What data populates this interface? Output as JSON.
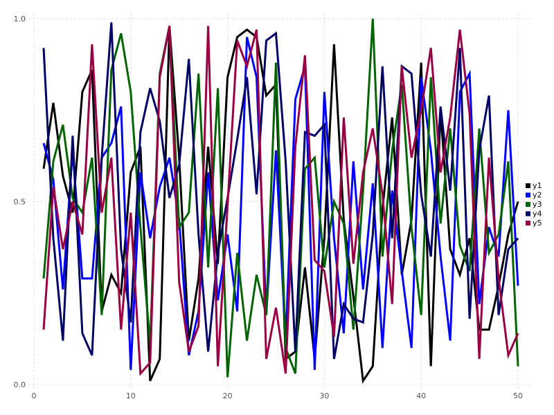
{
  "chart_data": {
    "type": "line",
    "title": "",
    "xlabel": "",
    "ylabel": "",
    "xlim": [
      0,
      50
    ],
    "ylim": [
      0,
      1
    ],
    "x_ticks": [
      "0",
      "10",
      "20",
      "30",
      "40",
      "50"
    ],
    "y_ticks": [
      "0.0",
      "0.5",
      "1.0"
    ],
    "grid": true,
    "legend_position": "right",
    "x": [
      1,
      2,
      3,
      4,
      5,
      6,
      7,
      8,
      9,
      10,
      11,
      12,
      13,
      14,
      15,
      16,
      17,
      18,
      19,
      20,
      21,
      22,
      23,
      24,
      25,
      26,
      27,
      28,
      29,
      30,
      31,
      32,
      33,
      34,
      35,
      36,
      37,
      38,
      39,
      40,
      41,
      42,
      43,
      44,
      45,
      46,
      47,
      48,
      49,
      50
    ],
    "series": [
      {
        "name": "y1",
        "color": "#000000",
        "values": [
          0.59,
          0.77,
          0.57,
          0.47,
          0.8,
          0.86,
          0.2,
          0.3,
          0.25,
          0.58,
          0.65,
          0.01,
          0.07,
          0.98,
          0.62,
          0.12,
          0.29,
          0.65,
          0.33,
          0.84,
          0.95,
          0.97,
          0.95,
          0.79,
          0.82,
          0.07,
          0.09,
          0.32,
          0.07,
          0.4,
          0.93,
          0.45,
          0.24,
          0.01,
          0.05,
          0.48,
          0.73,
          0.3,
          0.45,
          0.88,
          0.05,
          0.75,
          0.37,
          0.3,
          0.4,
          0.15,
          0.15,
          0.27,
          0.41,
          0.5
        ]
      },
      {
        "name": "y2",
        "color": "#0000ff",
        "values": [
          0.66,
          0.56,
          0.26,
          0.64,
          0.29,
          0.29,
          0.62,
          0.66,
          0.76,
          0.04,
          0.58,
          0.4,
          0.54,
          0.62,
          0.45,
          0.08,
          0.2,
          0.58,
          0.23,
          0.41,
          0.2,
          0.95,
          0.84,
          0.19,
          0.64,
          0.12,
          0.78,
          0.87,
          0.04,
          0.8,
          0.4,
          0.14,
          0.61,
          0.26,
          0.55,
          0.1,
          0.53,
          0.31,
          0.1,
          0.84,
          0.64,
          0.35,
          0.12,
          0.8,
          0.85,
          0.22,
          0.43,
          0.35,
          0.75,
          0.27
        ]
      },
      {
        "name": "y3",
        "color": "#006400",
        "values": [
          0.29,
          0.61,
          0.71,
          0.51,
          0.47,
          0.62,
          0.19,
          0.86,
          0.96,
          0.8,
          0.43,
          0.11,
          0.85,
          0.98,
          0.43,
          0.47,
          0.85,
          0.32,
          0.81,
          0.02,
          0.36,
          0.12,
          0.3,
          0.19,
          0.88,
          0.1,
          0.03,
          0.59,
          0.62,
          0.32,
          0.5,
          0.44,
          0.15,
          0.53,
          1.0,
          0.35,
          0.64,
          0.82,
          0.43,
          0.19,
          0.84,
          0.44,
          0.7,
          0.38,
          0.31,
          0.7,
          0.36,
          0.41,
          0.61,
          0.05
        ]
      },
      {
        "name": "y4",
        "color": "#000066",
        "values": [
          0.92,
          0.4,
          0.12,
          0.68,
          0.14,
          0.08,
          0.62,
          0.99,
          0.37,
          0.17,
          0.69,
          0.81,
          0.72,
          0.51,
          0.6,
          0.89,
          0.41,
          0.09,
          0.36,
          0.51,
          0.67,
          0.84,
          0.52,
          0.94,
          0.96,
          0.61,
          0.09,
          0.69,
          0.68,
          0.71,
          0.07,
          0.22,
          0.18,
          0.17,
          0.41,
          0.87,
          0.4,
          0.87,
          0.85,
          0.52,
          0.35,
          0.76,
          0.53,
          0.92,
          0.18,
          0.64,
          0.79,
          0.19,
          0.37,
          0.4
        ]
      },
      {
        "name": "y5",
        "color": "#990044",
        "values": [
          0.15,
          0.54,
          0.37,
          0.5,
          0.41,
          0.93,
          0.47,
          0.62,
          0.15,
          0.47,
          0.03,
          0.06,
          0.84,
          0.98,
          0.28,
          0.09,
          0.16,
          0.98,
          0.05,
          0.49,
          0.94,
          0.87,
          0.97,
          0.07,
          0.21,
          0.03,
          0.65,
          0.9,
          0.34,
          0.31,
          0.13,
          0.73,
          0.33,
          0.58,
          0.7,
          0.52,
          0.22,
          0.87,
          0.62,
          0.75,
          0.92,
          0.58,
          0.73,
          0.97,
          0.74,
          0.07,
          0.62,
          0.29,
          0.08,
          0.14
        ]
      }
    ]
  }
}
